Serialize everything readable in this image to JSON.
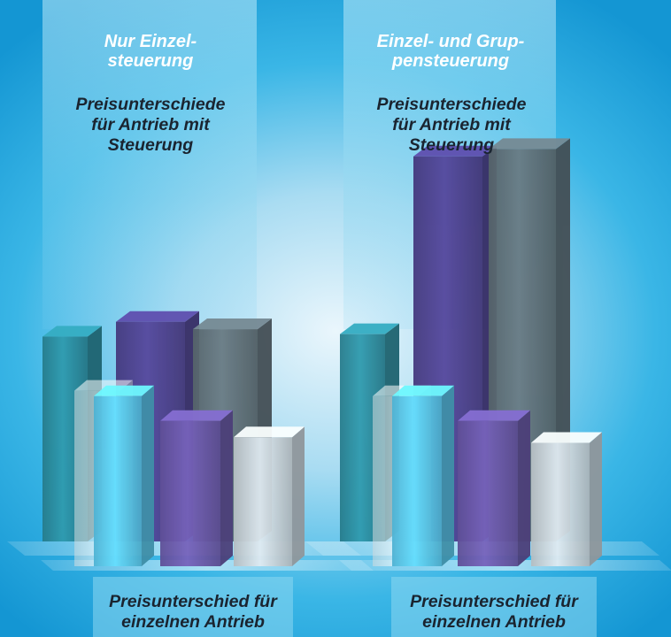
{
  "panels": [
    {
      "mode": "Nur Einzel-\nsteuerung",
      "control_caption": "Preisunterschiede\nfür Antrieb mit\nSteuerung",
      "single_caption": "Preisunterschied  für\neinzelnen Antrieb"
    },
    {
      "mode": "Einzel- und Grup-\npensteuerung",
      "control_caption": "Preisunterschiede\nfür Antrieb mit\nSteuerung",
      "single_caption": "Preisunterschied für\neinzelnen Antrieb"
    }
  ],
  "colors": {
    "teal": "#2a8a9c",
    "purple": "#4c3f8c",
    "gray": "#5e6e76",
    "light_blue": "#58c6ea",
    "light_purple": "#6a58a8",
    "silver": "#c8d2d8",
    "white_glass": "#e8f2f6"
  },
  "chart_data": [
    {
      "type": "bar",
      "title": "Nur Einzel-steuerung",
      "rear_series": {
        "name": "Preisunterschiede für Antrieb mit Steuerung",
        "values": [
          0.83,
          0.89,
          0.86
        ]
      },
      "front_series": {
        "name": "Preisunterschied für einzelnen Antrieb",
        "values": [
          0.64,
          0.62,
          0.53,
          0.47
        ]
      }
    },
    {
      "type": "bar",
      "title": "Einzel- und Gruppensteuerung",
      "rear_series": {
        "name": "Preisunterschiede für Antrieb mit Steuerung",
        "values": [
          0.84,
          1.56,
          1.59
        ]
      },
      "front_series": {
        "name": "Preisunterschied für einzelnen Antrieb",
        "values": [
          0.62,
          0.62,
          0.53,
          0.45
        ]
      }
    }
  ]
}
